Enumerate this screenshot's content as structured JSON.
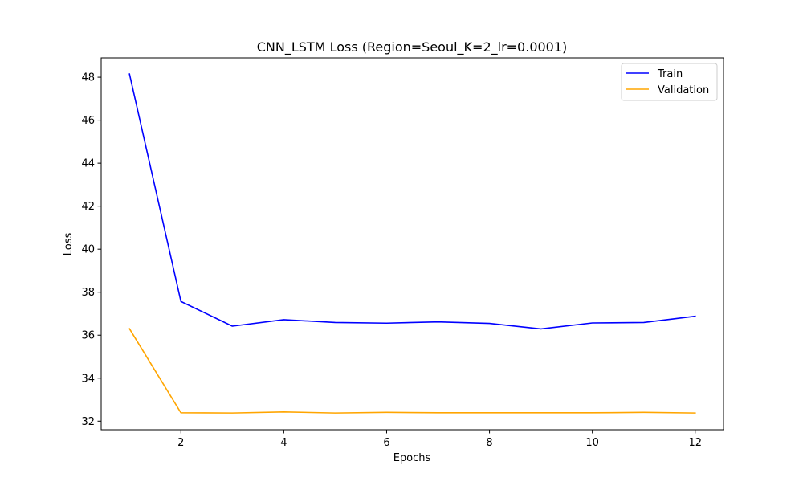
{
  "chart_data": {
    "type": "line",
    "title": "CNN_LSTM Loss (Region=Seoul_K=2_lr=0.0001)",
    "xlabel": "Epochs",
    "ylabel": "Loss",
    "x": [
      1,
      2,
      3,
      4,
      5,
      6,
      7,
      8,
      9,
      10,
      11,
      12
    ],
    "xlim": [
      0.45,
      12.55
    ],
    "ylim": [
      31.6,
      48.9
    ],
    "xticks": [
      2,
      4,
      6,
      8,
      10,
      12
    ],
    "yticks": [
      32,
      34,
      36,
      38,
      40,
      42,
      44,
      46,
      48
    ],
    "grid": false,
    "legend_position": "top-right",
    "series": [
      {
        "name": "Train",
        "color": "#0000ff",
        "values": [
          48.15,
          37.57,
          36.42,
          36.72,
          36.59,
          36.56,
          36.62,
          36.55,
          36.29,
          36.57,
          36.59,
          36.88
        ]
      },
      {
        "name": "Validation",
        "color": "#ffa500",
        "values": [
          36.3,
          32.39,
          32.38,
          32.43,
          32.38,
          32.41,
          32.39,
          32.39,
          32.39,
          32.39,
          32.41,
          32.38
        ]
      }
    ]
  }
}
